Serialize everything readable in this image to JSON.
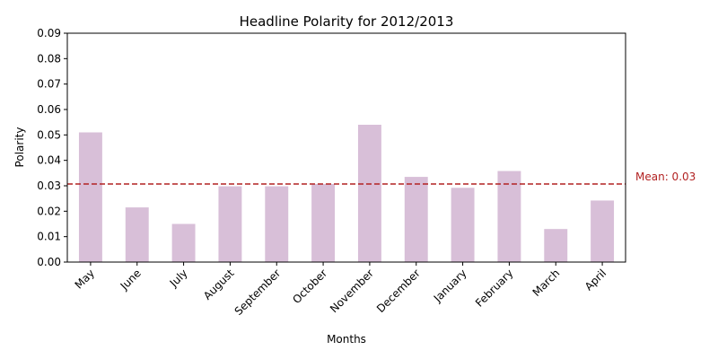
{
  "chart_data": {
    "type": "bar",
    "title": "Headline Polarity for 2012/2013",
    "xlabel": "Months",
    "ylabel": "Polarity",
    "categories": [
      "May",
      "June",
      "July",
      "August",
      "September",
      "October",
      "November",
      "December",
      "January",
      "February",
      "March",
      "April"
    ],
    "values": [
      0.051,
      0.0215,
      0.015,
      0.0298,
      0.0298,
      0.0307,
      0.054,
      0.0335,
      0.0292,
      0.0358,
      0.013,
      0.0242
    ],
    "ylim": [
      0,
      0.09
    ],
    "yticks": [
      "0.00",
      "0.01",
      "0.02",
      "0.03",
      "0.04",
      "0.05",
      "0.06",
      "0.07",
      "0.08",
      "0.09"
    ],
    "bar_color": "#d8bfd8",
    "grid": false,
    "mean": {
      "value": 0.0307,
      "label": "Mean: 0.03",
      "color": "#b22222",
      "style": "dashed"
    }
  }
}
